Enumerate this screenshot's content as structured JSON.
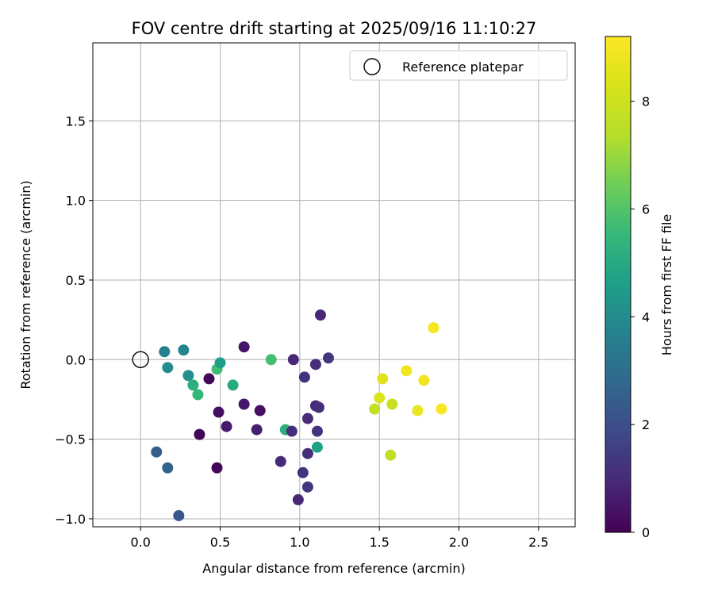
{
  "chart_data": {
    "type": "scatter",
    "title": "FOV centre drift starting at 2025/09/16 11:10:27",
    "xlabel": "Angular distance from reference (arcmin)",
    "ylabel": "Rotation from reference (arcmin)",
    "xlim": [
      -0.3,
      2.73
    ],
    "ylim": [
      -1.05,
      1.99
    ],
    "xticks": [
      0.0,
      0.5,
      1.0,
      1.5,
      2.0,
      2.5
    ],
    "xtick_labels": [
      "0.0",
      "0.5",
      "1.0",
      "1.5",
      "2.0",
      "2.5"
    ],
    "yticks": [
      -1.0,
      -0.5,
      0.0,
      0.5,
      1.0,
      1.5
    ],
    "ytick_labels": [
      "−1.0",
      "−0.5",
      "0.0",
      "0.5",
      "1.0",
      "1.5"
    ],
    "grid": true,
    "colorbar": {
      "label": "Hours from first FF file",
      "min": 0,
      "max": 9.2,
      "ticks": [
        0,
        2,
        4,
        6,
        8
      ],
      "tick_labels": [
        "0",
        "2",
        "4",
        "6",
        "8"
      ],
      "colormap": "viridis"
    },
    "reference": {
      "label": "Reference platepar",
      "x": 0.0,
      "y": 0.0
    },
    "legend": {
      "position": "top-right",
      "entries": [
        "Reference platepar"
      ]
    },
    "points": [
      {
        "x": 0.15,
        "y": 0.05,
        "t": 3.6
      },
      {
        "x": 0.27,
        "y": 0.06,
        "t": 3.8
      },
      {
        "x": 0.17,
        "y": -0.05,
        "t": 4.0
      },
      {
        "x": 0.3,
        "y": -0.1,
        "t": 4.1
      },
      {
        "x": 0.33,
        "y": -0.16,
        "t": 5.2
      },
      {
        "x": 0.36,
        "y": -0.22,
        "t": 5.5
      },
      {
        "x": 0.43,
        "y": -0.12,
        "t": 0.2
      },
      {
        "x": 0.48,
        "y": -0.06,
        "t": 5.7
      },
      {
        "x": 0.5,
        "y": -0.02,
        "t": 4.6
      },
      {
        "x": 0.58,
        "y": -0.16,
        "t": 5.0
      },
      {
        "x": 0.65,
        "y": 0.08,
        "t": 0.5
      },
      {
        "x": 0.49,
        "y": -0.33,
        "t": 0.3
      },
      {
        "x": 0.54,
        "y": -0.42,
        "t": 0.6
      },
      {
        "x": 0.37,
        "y": -0.47,
        "t": 0.1
      },
      {
        "x": 0.65,
        "y": -0.28,
        "t": 0.5
      },
      {
        "x": 0.75,
        "y": -0.32,
        "t": 0.3
      },
      {
        "x": 0.73,
        "y": -0.44,
        "t": 0.7
      },
      {
        "x": 0.1,
        "y": -0.58,
        "t": 2.4
      },
      {
        "x": 0.17,
        "y": -0.68,
        "t": 2.6
      },
      {
        "x": 0.48,
        "y": -0.68,
        "t": 0.1
      },
      {
        "x": 0.24,
        "y": -0.98,
        "t": 2.2
      },
      {
        "x": 0.82,
        "y": 0.0,
        "t": 5.8
      },
      {
        "x": 0.96,
        "y": 0.0,
        "t": 0.9
      },
      {
        "x": 1.03,
        "y": -0.11,
        "t": 1.2
      },
      {
        "x": 1.1,
        "y": -0.03,
        "t": 1.1
      },
      {
        "x": 1.13,
        "y": 0.28,
        "t": 0.9
      },
      {
        "x": 1.18,
        "y": 0.01,
        "t": 1.3
      },
      {
        "x": 1.1,
        "y": -0.29,
        "t": 1.0
      },
      {
        "x": 1.12,
        "y": -0.3,
        "t": 1.1
      },
      {
        "x": 1.05,
        "y": -0.37,
        "t": 1.0
      },
      {
        "x": 0.91,
        "y": -0.44,
        "t": 5.2
      },
      {
        "x": 0.95,
        "y": -0.45,
        "t": 1.1
      },
      {
        "x": 1.11,
        "y": -0.45,
        "t": 1.2
      },
      {
        "x": 1.11,
        "y": -0.55,
        "t": 4.7
      },
      {
        "x": 1.05,
        "y": -0.59,
        "t": 1.1
      },
      {
        "x": 0.88,
        "y": -0.64,
        "t": 1.0
      },
      {
        "x": 1.02,
        "y": -0.71,
        "t": 1.2
      },
      {
        "x": 1.05,
        "y": -0.8,
        "t": 1.3
      },
      {
        "x": 0.99,
        "y": -0.88,
        "t": 0.9
      },
      {
        "x": 1.47,
        "y": -0.31,
        "t": 7.8
      },
      {
        "x": 1.5,
        "y": -0.24,
        "t": 8.4
      },
      {
        "x": 1.52,
        "y": -0.12,
        "t": 8.5
      },
      {
        "x": 1.58,
        "y": -0.28,
        "t": 7.9
      },
      {
        "x": 1.57,
        "y": -0.6,
        "t": 7.7
      },
      {
        "x": 1.67,
        "y": -0.07,
        "t": 8.9
      },
      {
        "x": 1.74,
        "y": -0.32,
        "t": 8.8
      },
      {
        "x": 1.78,
        "y": -0.13,
        "t": 8.9
      },
      {
        "x": 1.84,
        "y": 0.2,
        "t": 9.0
      },
      {
        "x": 1.89,
        "y": -0.31,
        "t": 9.1
      }
    ]
  }
}
